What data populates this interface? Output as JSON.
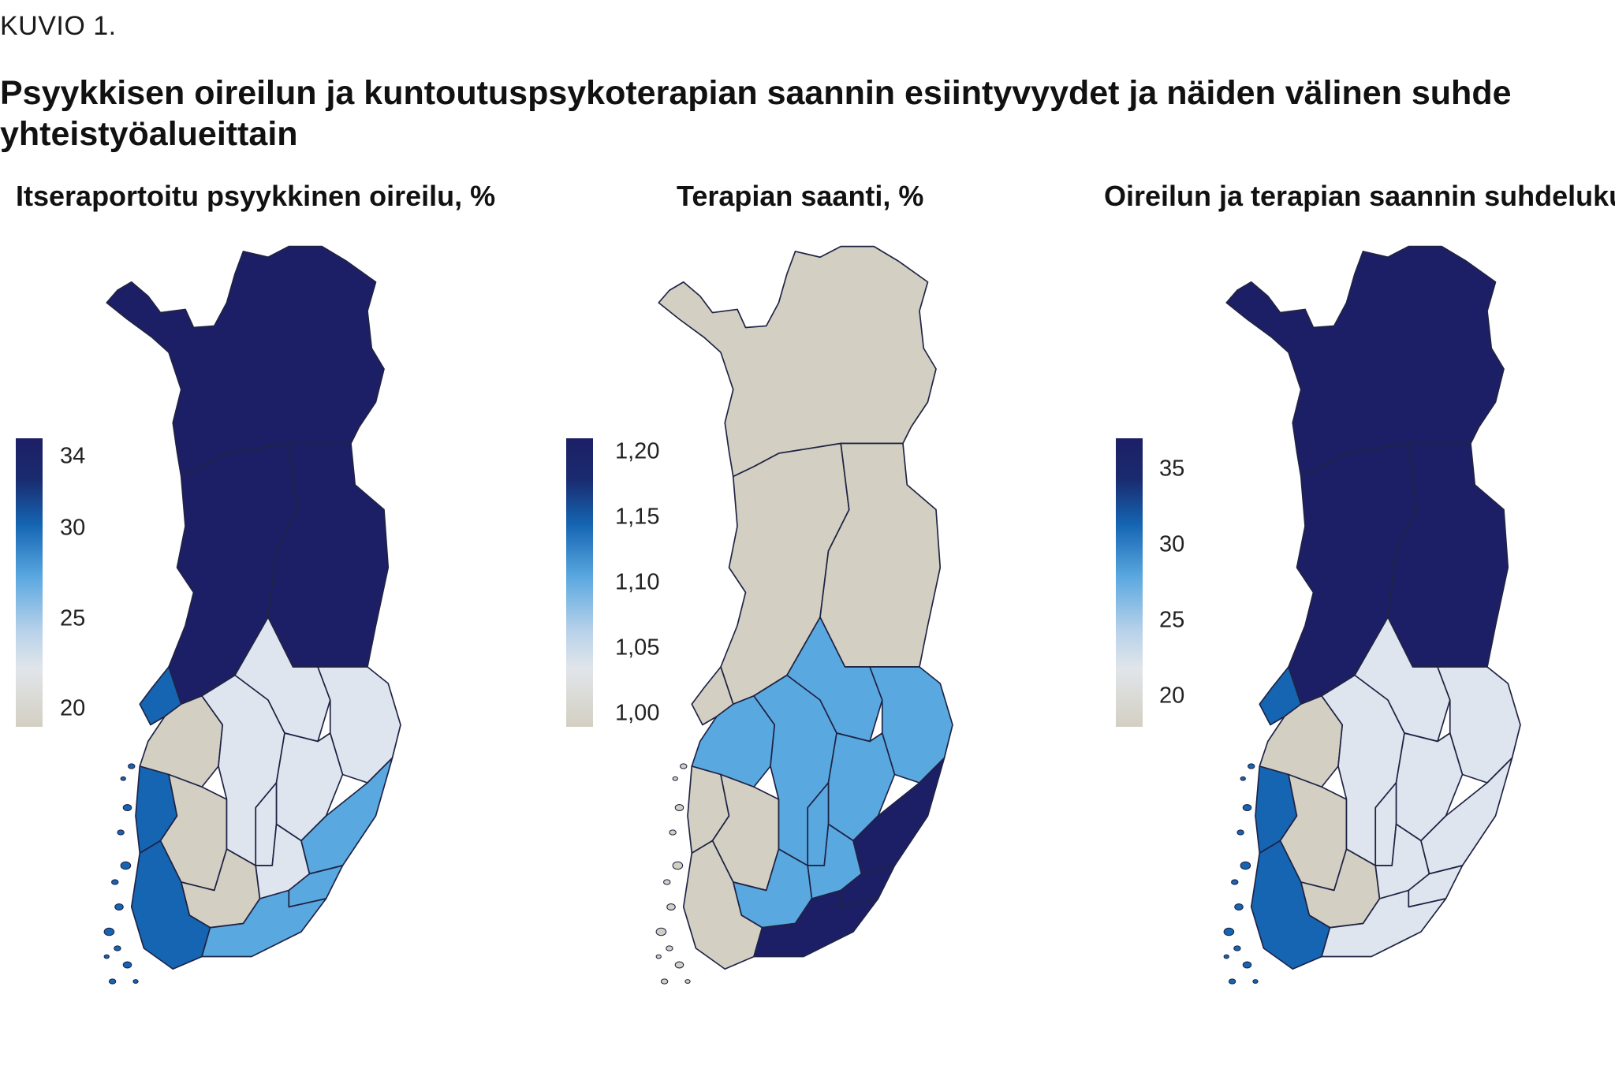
{
  "figure": {
    "label": "KUVIO 1.",
    "title": "Psyykkisen oireilun ja kuntoutuspsykoterapian saannin esiintyvyydet ja näiden välinen suhde yhteistyöalueittain"
  },
  "colors": {
    "low": "#d3cfc2",
    "pale": "#dfe5ee",
    "mid": "#5aa8e0",
    "high": "#1565b3",
    "max": "#1d1f66",
    "border": "#1f2344"
  },
  "panels": [
    {
      "title": "Itseraportoitu psyykkinen oireilu, %",
      "legend": {
        "ticks": [
          "34",
          "30",
          "25",
          "20"
        ],
        "values": [
          34,
          30,
          25,
          20
        ],
        "min": 19,
        "max": 35
      },
      "regions": {
        "lapland": "max",
        "north_ostrobothnia": "max",
        "kainuu": "max",
        "ostrobothnia": "high",
        "west_coast": "high",
        "southwest": "high",
        "south_ostrobothnia": "low",
        "satakunta": "low",
        "pirkanmaa_south": "low",
        "central_finland": "pale",
        "pohjois_savo": "pale",
        "north_karelia": "pale",
        "etela_savo": "pale",
        "paijat_hame": "pale",
        "kanta_hame": "pale",
        "kymenlaakso": "mid",
        "south_karelia": "mid",
        "uusimaa": "mid"
      }
    },
    {
      "title": "Terapian saanti, %",
      "legend": {
        "ticks": [
          "1,20",
          "1,15",
          "1,10",
          "1,05",
          "1,00"
        ],
        "values": [
          1.2,
          1.15,
          1.1,
          1.05,
          1.0
        ],
        "min": 0.99,
        "max": 1.21
      },
      "regions": {
        "lapland": "low",
        "north_ostrobothnia": "low",
        "kainuu": "low",
        "ostrobothnia": "low",
        "west_coast": "low",
        "southwest": "low",
        "south_ostrobothnia": "mid",
        "satakunta": "low",
        "pirkanmaa_south": "mid",
        "central_finland": "mid",
        "pohjois_savo": "mid",
        "north_karelia": "mid",
        "etela_savo": "mid",
        "paijat_hame": "mid",
        "kanta_hame": "mid",
        "kymenlaakso": "max",
        "south_karelia": "max",
        "uusimaa": "max"
      }
    },
    {
      "title": "Oireilun ja terapian saannin suhdeluku",
      "legend": {
        "ticks": [
          "35",
          "30",
          "25",
          "20"
        ],
        "values": [
          35,
          30,
          25,
          20
        ],
        "min": 18,
        "max": 37
      },
      "regions": {
        "lapland": "max",
        "north_ostrobothnia": "max",
        "kainuu": "max",
        "ostrobothnia": "high",
        "west_coast": "high",
        "southwest": "high",
        "south_ostrobothnia": "low",
        "satakunta": "low",
        "pirkanmaa_south": "low",
        "central_finland": "pale",
        "pohjois_savo": "pale",
        "north_karelia": "pale",
        "etela_savo": "pale",
        "paijat_hame": "pale",
        "kanta_hame": "pale",
        "kymenlaakso": "pale",
        "south_karelia": "pale",
        "uusimaa": "pale"
      }
    }
  ]
}
